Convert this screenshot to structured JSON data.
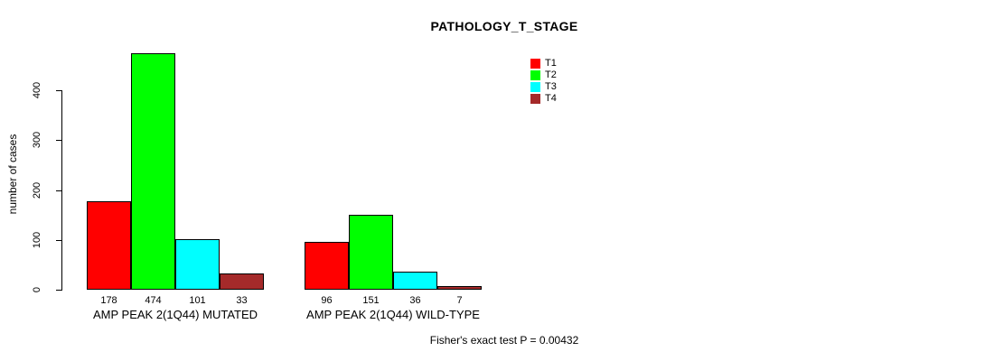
{
  "title": "PATHOLOGY_T_STAGE",
  "footer": "Fisher's exact test P = 0.00432",
  "chart_data": {
    "type": "bar",
    "title": "PATHOLOGY_T_STAGE",
    "xlabel": "",
    "ylabel": "number of cases",
    "ylim": [
      0,
      474
    ],
    "yticks": [
      0,
      100,
      200,
      300,
      400
    ],
    "grid": false,
    "legend_position": "top-right-inside",
    "categories": [
      "AMP PEAK 2(1Q44) MUTATED",
      "AMP PEAK 2(1Q44) WILD-TYPE"
    ],
    "series": [
      {
        "name": "T1",
        "color": "#FF0000",
        "values": [
          178,
          96
        ]
      },
      {
        "name": "T2",
        "color": "#00FF00",
        "values": [
          474,
          151
        ]
      },
      {
        "name": "T3",
        "color": "#00FFFF",
        "values": [
          101,
          36
        ]
      },
      {
        "name": "T4",
        "color": "#A52A2A",
        "values": [
          33,
          7
        ]
      }
    ],
    "bar_value_labels": [
      [
        178,
        474,
        101,
        33
      ],
      [
        96,
        151,
        36,
        7
      ]
    ],
    "annotation": "Fisher's exact test P = 0.00432"
  }
}
